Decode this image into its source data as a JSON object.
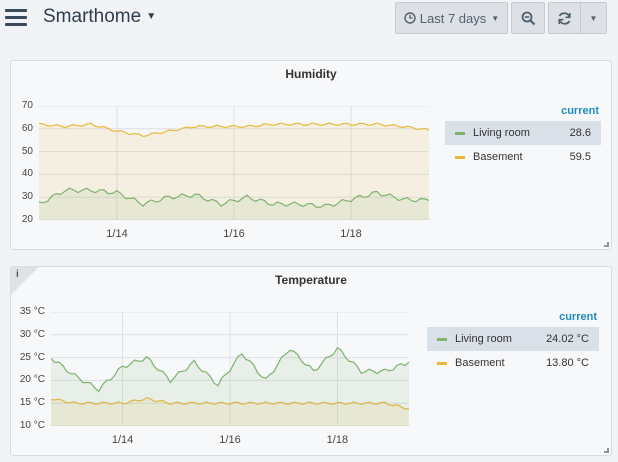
{
  "header": {
    "title": "Smarthome",
    "time_range": "Last 7 days"
  },
  "panels": [
    {
      "title": "Humidity",
      "y_ticks": [
        "70",
        "60",
        "50",
        "40",
        "30",
        "20"
      ],
      "x_ticks": [
        "1/14",
        "1/16",
        "1/18"
      ],
      "legend_header": "current",
      "series": [
        {
          "name": "Living room",
          "current": "28.6",
          "color": "#7eb26d"
        },
        {
          "name": "Basement",
          "current": "59.5",
          "color": "#eab839"
        }
      ]
    },
    {
      "title": "Temperature",
      "y_ticks": [
        "35 °C",
        "30 °C",
        "25 °C",
        "20 °C",
        "15 °C",
        "10 °C"
      ],
      "x_ticks": [
        "1/14",
        "1/16",
        "1/18"
      ],
      "legend_header": "current",
      "series": [
        {
          "name": "Living room",
          "current": "24.02 °C",
          "color": "#7eb26d"
        },
        {
          "name": "Basement",
          "current": "13.80 °C",
          "color": "#eab839"
        }
      ]
    }
  ],
  "chart_data": [
    {
      "type": "area",
      "title": "Humidity",
      "x": [
        "1/12",
        "1/12.5",
        "1/13",
        "1/13.5",
        "1/14",
        "1/14.5",
        "1/15",
        "1/15.5",
        "1/16",
        "1/16.5",
        "1/17",
        "1/17.5",
        "1/18",
        "1/18.5",
        "1/19",
        "1/19.5"
      ],
      "ylim": [
        20,
        70
      ],
      "series": [
        {
          "name": "Living room",
          "values": [
            27,
            33,
            33,
            32,
            27,
            30,
            31,
            27,
            30,
            27,
            27,
            26,
            29,
            32,
            29,
            28.6
          ]
        },
        {
          "name": "Basement",
          "values": [
            62,
            61,
            62,
            59,
            57,
            59,
            61,
            61,
            61,
            62,
            62,
            62,
            62,
            62,
            61,
            59.5
          ]
        }
      ]
    },
    {
      "type": "area",
      "title": "Temperature",
      "x": [
        "1/12",
        "1/12.5",
        "1/13",
        "1/13.5",
        "1/14",
        "1/14.5",
        "1/15",
        "1/15.5",
        "1/16",
        "1/16.5",
        "1/17",
        "1/17.5",
        "1/18",
        "1/18.5",
        "1/19",
        "1/19.5"
      ],
      "ylim": [
        10,
        35
      ],
      "series": [
        {
          "name": "Living room",
          "values": [
            25,
            21,
            18,
            23,
            25,
            20,
            24,
            19,
            26,
            20,
            27,
            22,
            27,
            22,
            22,
            24.02
          ]
        },
        {
          "name": "Basement",
          "values": [
            16,
            15,
            15,
            15,
            16,
            15,
            15,
            15,
            15,
            15,
            15,
            15,
            15,
            15,
            15,
            13.8
          ]
        }
      ]
    }
  ]
}
